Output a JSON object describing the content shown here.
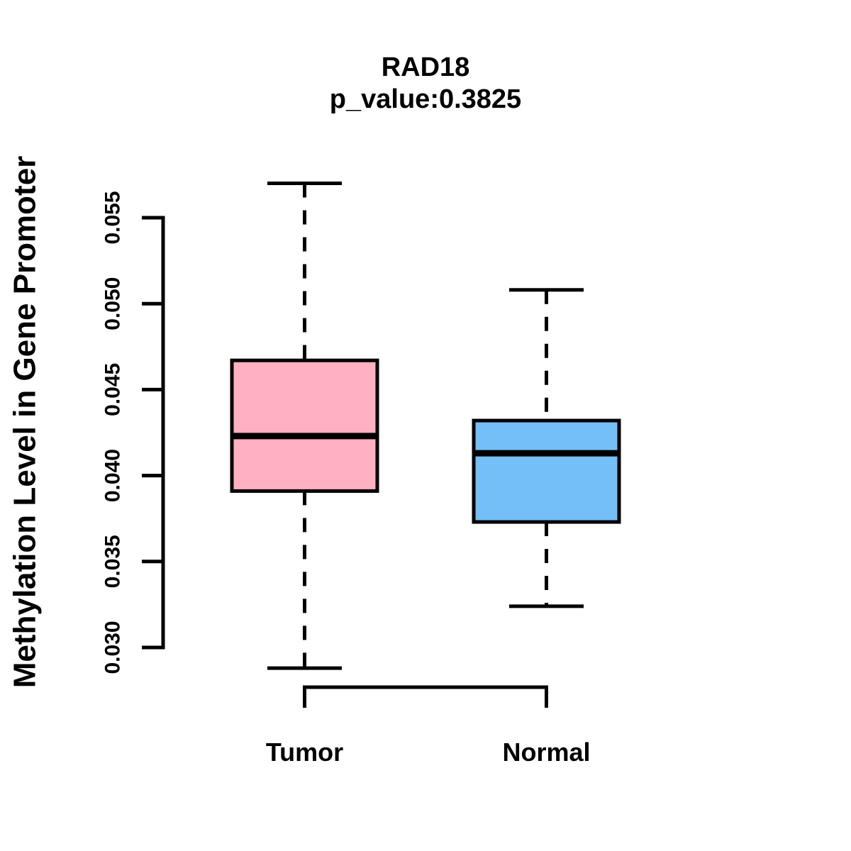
{
  "figure": {
    "background": "#ffffff",
    "stroke_color": "#000000"
  },
  "chart_data": {
    "type": "boxplot",
    "title": "RAD18",
    "subtitle": "p_value:0.3825",
    "ylabel": "Methylation Level in Gene Promoter",
    "xlabel": "",
    "ylim": [
      0.03,
      0.055
    ],
    "y_ticks": [
      "0.030",
      "0.035",
      "0.040",
      "0.045",
      "0.050",
      "0.055"
    ],
    "grid": false,
    "legend": "none",
    "categories": [
      "Tumor",
      "Normal"
    ],
    "series": [
      {
        "name": "Tumor",
        "color": "#ffb0c1",
        "whisker_low": 0.0288,
        "q1": 0.0391,
        "median": 0.0423,
        "q3": 0.0467,
        "whisker_high": 0.057
      },
      {
        "name": "Normal",
        "color": "#74bff7",
        "whisker_low": 0.0324,
        "q1": 0.0373,
        "median": 0.0413,
        "q3": 0.0432,
        "whisker_high": 0.0508
      }
    ]
  }
}
